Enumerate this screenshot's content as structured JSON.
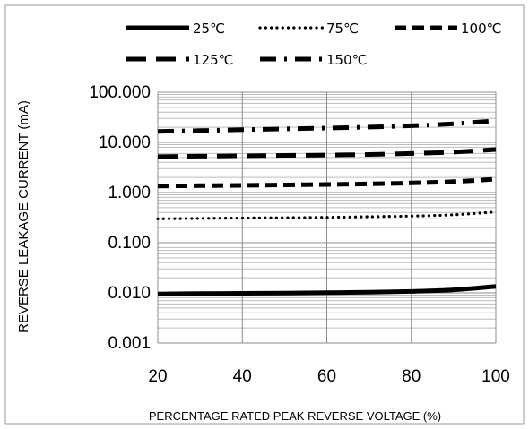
{
  "chart_data": {
    "type": "line",
    "title": "",
    "xlabel": "PERCENTAGE RATED PEAK REVERSE VOLTAGE (%)",
    "ylabel": "REVERSE LEAKAGE CURRENT (mA)",
    "yscale": "log",
    "xlim": [
      20,
      100
    ],
    "ylim": [
      0.001,
      100
    ],
    "x_ticks": [
      20,
      40,
      60,
      80,
      100
    ],
    "x_tick_labels": [
      "20",
      "40",
      "60",
      "80",
      "100"
    ],
    "y_ticks": [
      0.001,
      0.01,
      0.1,
      1,
      10,
      100
    ],
    "y_tick_labels": [
      "0.001",
      "0.010",
      "0.100",
      "1.000",
      "10.000",
      "100.000"
    ],
    "grid": true,
    "legend_position": "top",
    "x": [
      20,
      30,
      40,
      50,
      60,
      70,
      80,
      90,
      100
    ],
    "series": [
      {
        "name": "25℃",
        "style": "solid",
        "values": [
          0.0095,
          0.0097,
          0.0098,
          0.0099,
          0.0101,
          0.0103,
          0.0107,
          0.0115,
          0.0135
        ]
      },
      {
        "name": "75℃",
        "style": "dotted",
        "values": [
          0.3,
          0.305,
          0.31,
          0.315,
          0.32,
          0.33,
          0.34,
          0.36,
          0.41
        ]
      },
      {
        "name": "100℃",
        "style": "dash",
        "values": [
          1.35,
          1.37,
          1.39,
          1.42,
          1.45,
          1.49,
          1.55,
          1.65,
          1.85
        ]
      },
      {
        "name": "125℃",
        "style": "longdash",
        "values": [
          5.2,
          5.3,
          5.4,
          5.5,
          5.6,
          5.75,
          6.0,
          6.4,
          7.2
        ]
      },
      {
        "name": "150℃",
        "style": "dashdot",
        "values": [
          16.5,
          17.2,
          17.9,
          18.6,
          19.3,
          20.2,
          21.5,
          23.5,
          27.0
        ]
      }
    ]
  }
}
